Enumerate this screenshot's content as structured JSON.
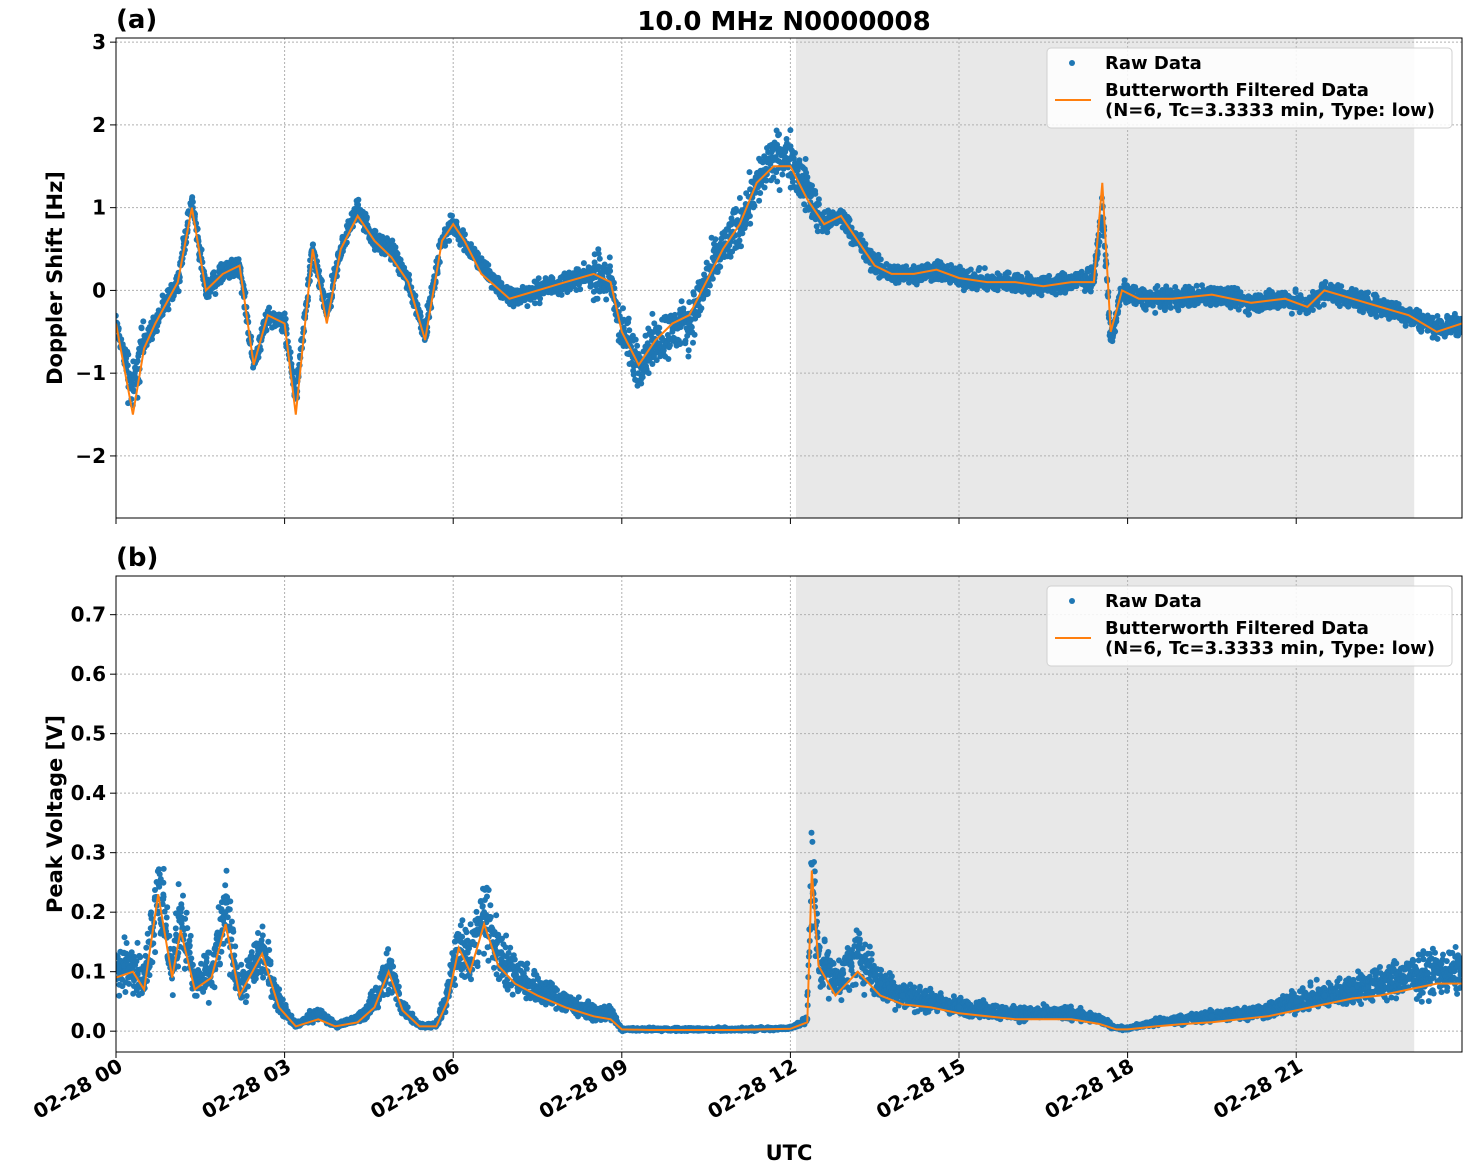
{
  "title": "10.0 MHz N0000008",
  "colors": {
    "raw": "#1f77b4",
    "filtered": "#ff7f0e",
    "night_shade": "#e8e8e8",
    "grid": "#b0b0b0"
  },
  "chart_data": [
    {
      "type": "scatter",
      "panel_label": "(a)",
      "ylabel": "Doppler Shift [Hz]",
      "xlabel": "",
      "x_unit": "hours since 02-28 00:00 UTC",
      "xlim": [
        0,
        23.95
      ],
      "ylim": [
        -2.75,
        3.05
      ],
      "yticks": [
        -2,
        -1,
        0,
        1,
        2,
        3
      ],
      "ytick_labels": [
        "−2",
        "−1",
        "0",
        "1",
        "2",
        "3"
      ],
      "shaded_x_range": [
        12.1,
        23.1
      ],
      "grid": true,
      "legend_position": "top-right",
      "series": [
        {
          "name": "Raw Data",
          "style": "points",
          "x": [
            0,
            0.3,
            0.5,
            0.7,
            1.1,
            1.35,
            1.6,
            1.9,
            2.2,
            2.45,
            2.7,
            3.0,
            3.2,
            3.5,
            3.75,
            4.0,
            4.3,
            4.6,
            4.9,
            5.2,
            5.5,
            5.8,
            6.0,
            6.2,
            6.5,
            7.0,
            7.5,
            8.0,
            8.5,
            8.8,
            9.0,
            9.3,
            9.6,
            9.9,
            10.2,
            10.5,
            10.8,
            11.1,
            11.4,
            11.7,
            12.0,
            12.3,
            12.6,
            12.9,
            13.2,
            13.5,
            13.8,
            14.2,
            14.6,
            15.0,
            15.5,
            16.0,
            16.5,
            17.0,
            17.4,
            17.55,
            17.7,
            17.9,
            18.2,
            18.8,
            19.5,
            20.2,
            20.8,
            21.2,
            21.5,
            22.0,
            22.5,
            23.0,
            23.5,
            23.95
          ],
          "y": [
            -0.4,
            -1.2,
            -0.6,
            -0.4,
            0.1,
            1.1,
            0.0,
            0.2,
            0.3,
            -0.9,
            -0.3,
            -0.4,
            -1.3,
            0.5,
            -0.3,
            0.5,
            1.0,
            0.6,
            0.5,
            0.1,
            -0.5,
            0.6,
            0.8,
            0.6,
            0.3,
            -0.1,
            0.0,
            0.1,
            0.2,
            0.1,
            -0.5,
            -0.9,
            -0.6,
            -0.5,
            -0.4,
            0.1,
            0.5,
            0.8,
            1.3,
            1.6,
            1.6,
            1.2,
            0.8,
            0.9,
            0.6,
            0.3,
            0.2,
            0.2,
            0.25,
            0.15,
            0.1,
            0.1,
            0.05,
            0.1,
            0.15,
            1.0,
            -0.6,
            0.0,
            -0.1,
            -0.1,
            -0.05,
            -0.15,
            -0.1,
            -0.2,
            0.0,
            -0.1,
            -0.2,
            -0.3,
            -0.45,
            -0.4
          ]
        },
        {
          "name": "Butterworth Filtered Data",
          "label_line2": "(N=6, Tc=3.3333 min, Type: low)",
          "style": "line",
          "x": [
            0,
            0.3,
            0.5,
            0.7,
            1.1,
            1.35,
            1.6,
            1.9,
            2.2,
            2.45,
            2.7,
            3.0,
            3.2,
            3.5,
            3.75,
            4.0,
            4.3,
            4.6,
            4.9,
            5.2,
            5.5,
            5.8,
            6.0,
            6.2,
            6.5,
            7.0,
            7.5,
            8.0,
            8.5,
            8.8,
            9.0,
            9.3,
            9.6,
            9.9,
            10.2,
            10.5,
            10.8,
            11.1,
            11.4,
            11.7,
            12.0,
            12.3,
            12.6,
            12.9,
            13.2,
            13.5,
            13.8,
            14.2,
            14.6,
            15.0,
            15.5,
            16.0,
            16.5,
            17.0,
            17.4,
            17.55,
            17.7,
            17.9,
            18.2,
            18.8,
            19.5,
            20.2,
            20.8,
            21.2,
            21.5,
            22.0,
            22.5,
            23.0,
            23.5,
            23.95
          ],
          "y": [
            -0.4,
            -1.5,
            -0.7,
            -0.4,
            0.1,
            1.0,
            0.0,
            0.2,
            0.3,
            -0.9,
            -0.3,
            -0.4,
            -1.5,
            0.5,
            -0.4,
            0.5,
            0.9,
            0.6,
            0.4,
            0.1,
            -0.6,
            0.6,
            0.8,
            0.6,
            0.2,
            -0.1,
            0.0,
            0.1,
            0.2,
            0.1,
            -0.5,
            -0.9,
            -0.6,
            -0.4,
            -0.3,
            0.1,
            0.5,
            0.8,
            1.3,
            1.5,
            1.5,
            1.1,
            0.8,
            0.9,
            0.6,
            0.3,
            0.2,
            0.2,
            0.25,
            0.15,
            0.1,
            0.1,
            0.05,
            0.1,
            0.1,
            1.3,
            -0.5,
            0.0,
            -0.1,
            -0.1,
            -0.05,
            -0.15,
            -0.1,
            -0.2,
            0.0,
            -0.1,
            -0.2,
            -0.3,
            -0.5,
            -0.4
          ]
        }
      ]
    },
    {
      "type": "scatter",
      "panel_label": "(b)",
      "ylabel": "Peak Voltage [V]",
      "xlabel": "UTC",
      "x_unit": "hours since 02-28 00:00 UTC",
      "xlim": [
        0,
        23.95
      ],
      "ylim": [
        -0.035,
        0.765
      ],
      "yticks": [
        0.0,
        0.1,
        0.2,
        0.3,
        0.4,
        0.5,
        0.6,
        0.7
      ],
      "ytick_labels": [
        "0.0",
        "0.1",
        "0.2",
        "0.3",
        "0.4",
        "0.5",
        "0.6",
        "0.7"
      ],
      "xticks": [
        0,
        3,
        6,
        9,
        12,
        15,
        18,
        21
      ],
      "xtick_labels": [
        "02-28 00",
        "02-28 03",
        "02-28 06",
        "02-28 09",
        "02-28 12",
        "02-28 15",
        "02-28 18",
        "02-28 21"
      ],
      "shaded_x_range": [
        12.1,
        23.1
      ],
      "grid": true,
      "legend_position": "top-right",
      "series": [
        {
          "name": "Raw Data",
          "style": "points",
          "x": [
            0,
            0.3,
            0.5,
            0.75,
            1.0,
            1.15,
            1.4,
            1.7,
            1.95,
            2.2,
            2.6,
            2.9,
            3.2,
            3.6,
            3.9,
            4.3,
            4.6,
            4.85,
            5.1,
            5.4,
            5.7,
            5.9,
            6.1,
            6.3,
            6.55,
            6.8,
            7.1,
            7.5,
            8.0,
            8.5,
            8.8,
            9.0,
            9.5,
            10.0,
            11.0,
            12.0,
            12.3,
            12.38,
            12.5,
            12.8,
            13.2,
            13.6,
            14.0,
            14.5,
            15.0,
            15.5,
            16.0,
            16.5,
            17.0,
            17.5,
            17.8,
            18.0,
            18.5,
            19.0,
            19.5,
            20.0,
            20.5,
            21.0,
            21.5,
            22.0,
            22.5,
            23.0,
            23.5,
            23.95
          ],
          "y": [
            0.1,
            0.12,
            0.08,
            0.25,
            0.1,
            0.2,
            0.08,
            0.1,
            0.2,
            0.07,
            0.14,
            0.05,
            0.01,
            0.03,
            0.01,
            0.02,
            0.05,
            0.11,
            0.04,
            0.01,
            0.01,
            0.06,
            0.16,
            0.12,
            0.2,
            0.13,
            0.1,
            0.07,
            0.05,
            0.03,
            0.03,
            0.003,
            0.003,
            0.003,
            0.003,
            0.005,
            0.02,
            0.28,
            0.13,
            0.08,
            0.13,
            0.08,
            0.06,
            0.05,
            0.04,
            0.035,
            0.03,
            0.03,
            0.03,
            0.02,
            0.005,
            0.005,
            0.015,
            0.02,
            0.025,
            0.03,
            0.035,
            0.05,
            0.06,
            0.07,
            0.08,
            0.09,
            0.1,
            0.1
          ]
        },
        {
          "name": "Butterworth Filtered Data",
          "label_line2": "(N=6, Tc=3.3333 min, Type: low)",
          "style": "line",
          "x": [
            0,
            0.3,
            0.5,
            0.75,
            1.0,
            1.15,
            1.4,
            1.7,
            1.95,
            2.2,
            2.6,
            2.9,
            3.2,
            3.6,
            3.9,
            4.3,
            4.6,
            4.85,
            5.1,
            5.4,
            5.7,
            5.9,
            6.1,
            6.3,
            6.55,
            6.8,
            7.1,
            7.5,
            8.0,
            8.5,
            8.8,
            9.0,
            9.5,
            10.0,
            11.0,
            12.0,
            12.3,
            12.38,
            12.5,
            12.8,
            13.2,
            13.6,
            14.0,
            14.5,
            15.0,
            15.5,
            16.0,
            16.5,
            17.0,
            17.5,
            17.8,
            18.0,
            18.5,
            19.0,
            19.5,
            20.0,
            20.5,
            21.0,
            21.5,
            22.0,
            22.5,
            23.0,
            23.5,
            23.95
          ],
          "y": [
            0.09,
            0.1,
            0.07,
            0.23,
            0.09,
            0.17,
            0.07,
            0.09,
            0.18,
            0.06,
            0.13,
            0.04,
            0.008,
            0.02,
            0.008,
            0.015,
            0.04,
            0.1,
            0.035,
            0.008,
            0.008,
            0.05,
            0.14,
            0.1,
            0.18,
            0.11,
            0.08,
            0.06,
            0.04,
            0.025,
            0.02,
            0.003,
            0.002,
            0.002,
            0.002,
            0.004,
            0.015,
            0.27,
            0.11,
            0.06,
            0.1,
            0.06,
            0.045,
            0.04,
            0.03,
            0.025,
            0.02,
            0.02,
            0.02,
            0.012,
            0.003,
            0.003,
            0.008,
            0.012,
            0.015,
            0.02,
            0.025,
            0.035,
            0.045,
            0.055,
            0.06,
            0.07,
            0.08,
            0.08
          ]
        }
      ]
    }
  ]
}
